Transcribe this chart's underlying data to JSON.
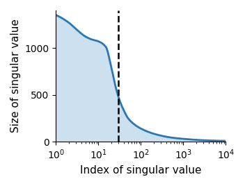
{
  "title": "",
  "xlabel": "Index of singular value",
  "ylabel": "Size of singular value",
  "xlim": [
    1,
    10000
  ],
  "ylim": [
    0,
    1400
  ],
  "yticks": [
    0,
    500,
    1000
  ],
  "dashed_line_x": 30,
  "fill_color": "#cce0f0",
  "curve_color": "#2878b5",
  "curve_linewidth": 2.0,
  "background_color": "#ffffff",
  "key_points": [
    [
      1,
      1350
    ],
    [
      2,
      1270
    ],
    [
      3,
      1200
    ],
    [
      5,
      1120
    ],
    [
      7,
      1090
    ],
    [
      10,
      1070
    ],
    [
      15,
      1010
    ],
    [
      20,
      800
    ],
    [
      25,
      600
    ],
    [
      30,
      470
    ],
    [
      40,
      330
    ],
    [
      50,
      250
    ],
    [
      70,
      185
    ],
    [
      100,
      140
    ],
    [
      200,
      85
    ],
    [
      500,
      45
    ],
    [
      1000,
      30
    ],
    [
      3000,
      15
    ],
    [
      10000,
      8
    ]
  ]
}
